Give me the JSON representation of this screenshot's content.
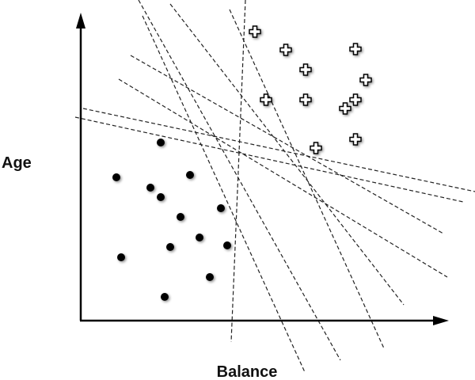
{
  "axes": {
    "y_label": "Age",
    "x_label": "Balance"
  }
}
